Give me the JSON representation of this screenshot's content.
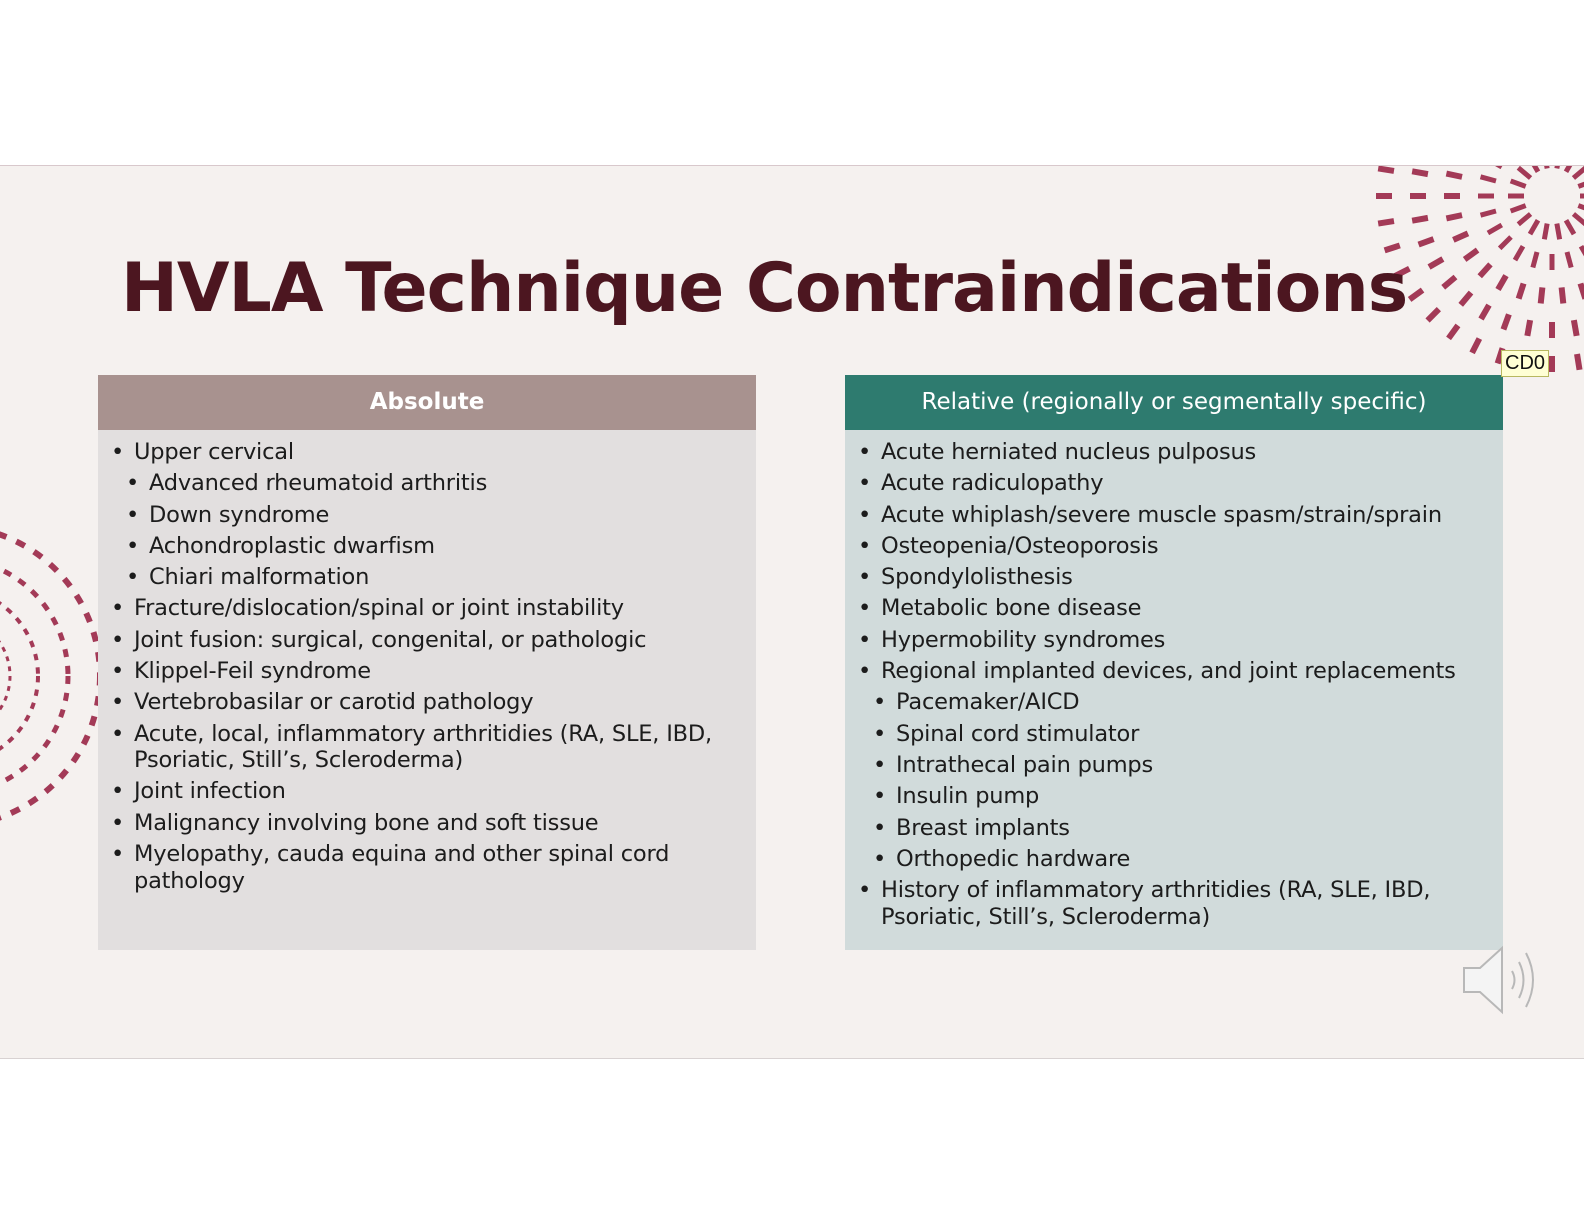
{
  "slide": {
    "title": "HVLA Technique Contraindications",
    "comment_tag": "CD0"
  },
  "absolute": {
    "header": "Absolute",
    "items": [
      {
        "text": "Upper cervical",
        "level": 0
      },
      {
        "text": "Advanced rheumatoid arthritis",
        "level": 1
      },
      {
        "text": "Down syndrome",
        "level": 1
      },
      {
        "text": "Achondroplastic dwarfism",
        "level": 1
      },
      {
        "text": "Chiari malformation",
        "level": 1
      },
      {
        "text": " Fracture/dislocation/spinal or joint instability",
        "level": 0
      },
      {
        "text": "Joint fusion: surgical, congenital, or pathologic",
        "level": 0
      },
      {
        "text": "Klippel-Feil syndrome",
        "level": 0
      },
      {
        "text": "Vertebrobasilar or carotid pathology",
        "level": 0
      },
      {
        "text": "Acute, local, inflammatory arthritidies (RA, SLE, IBD, Psoriatic, Still’s, Scleroderma)",
        "level": 0
      },
      {
        "text": "Joint infection",
        "level": 0
      },
      {
        "text": "Malignancy involving bone and soft tissue",
        "level": 0
      },
      {
        "text": "Myelopathy, cauda equina and other spinal cord pathology",
        "level": 0
      }
    ]
  },
  "relative": {
    "header": "Relative (regionally or segmentally specific)",
    "items": [
      {
        "text": "Acute herniated nucleus pulposus",
        "level": 0
      },
      {
        "text": "Acute radiculopathy",
        "level": 0
      },
      {
        "text": "Acute whiplash/severe muscle spasm/strain/sprain",
        "level": 0
      },
      {
        "text": "Osteopenia/Osteoporosis",
        "level": 0
      },
      {
        "text": "Spondylolisthesis",
        "level": 0
      },
      {
        "text": "Metabolic bone disease",
        "level": 0
      },
      {
        "text": "Hypermobility syndromes",
        "level": 0
      },
      {
        "text": "Regional implanted devices, and joint replacements",
        "level": 0
      },
      {
        "text": "Pacemaker/AICD",
        "level": 1
      },
      {
        "text": "Spinal cord stimulator",
        "level": 1
      },
      {
        "text": "Intrathecal pain pumps",
        "level": 1
      },
      {
        "text": "Insulin pump",
        "level": 1
      },
      {
        "text": "Breast implants",
        "level": 1
      },
      {
        "text": "Orthopedic hardware",
        "level": 1
      },
      {
        "text": "History of inflammatory arthritidies (RA, SLE, IBD, Psoriatic, Still’s, Scleroderma)",
        "level": 0
      }
    ]
  },
  "icons": {
    "audio": "speaker-icon"
  },
  "colors": {
    "title": "#4c1620",
    "absolute_header": "#a8928f",
    "relative_header": "#2e7b6f",
    "decoration": "#a33a57"
  }
}
